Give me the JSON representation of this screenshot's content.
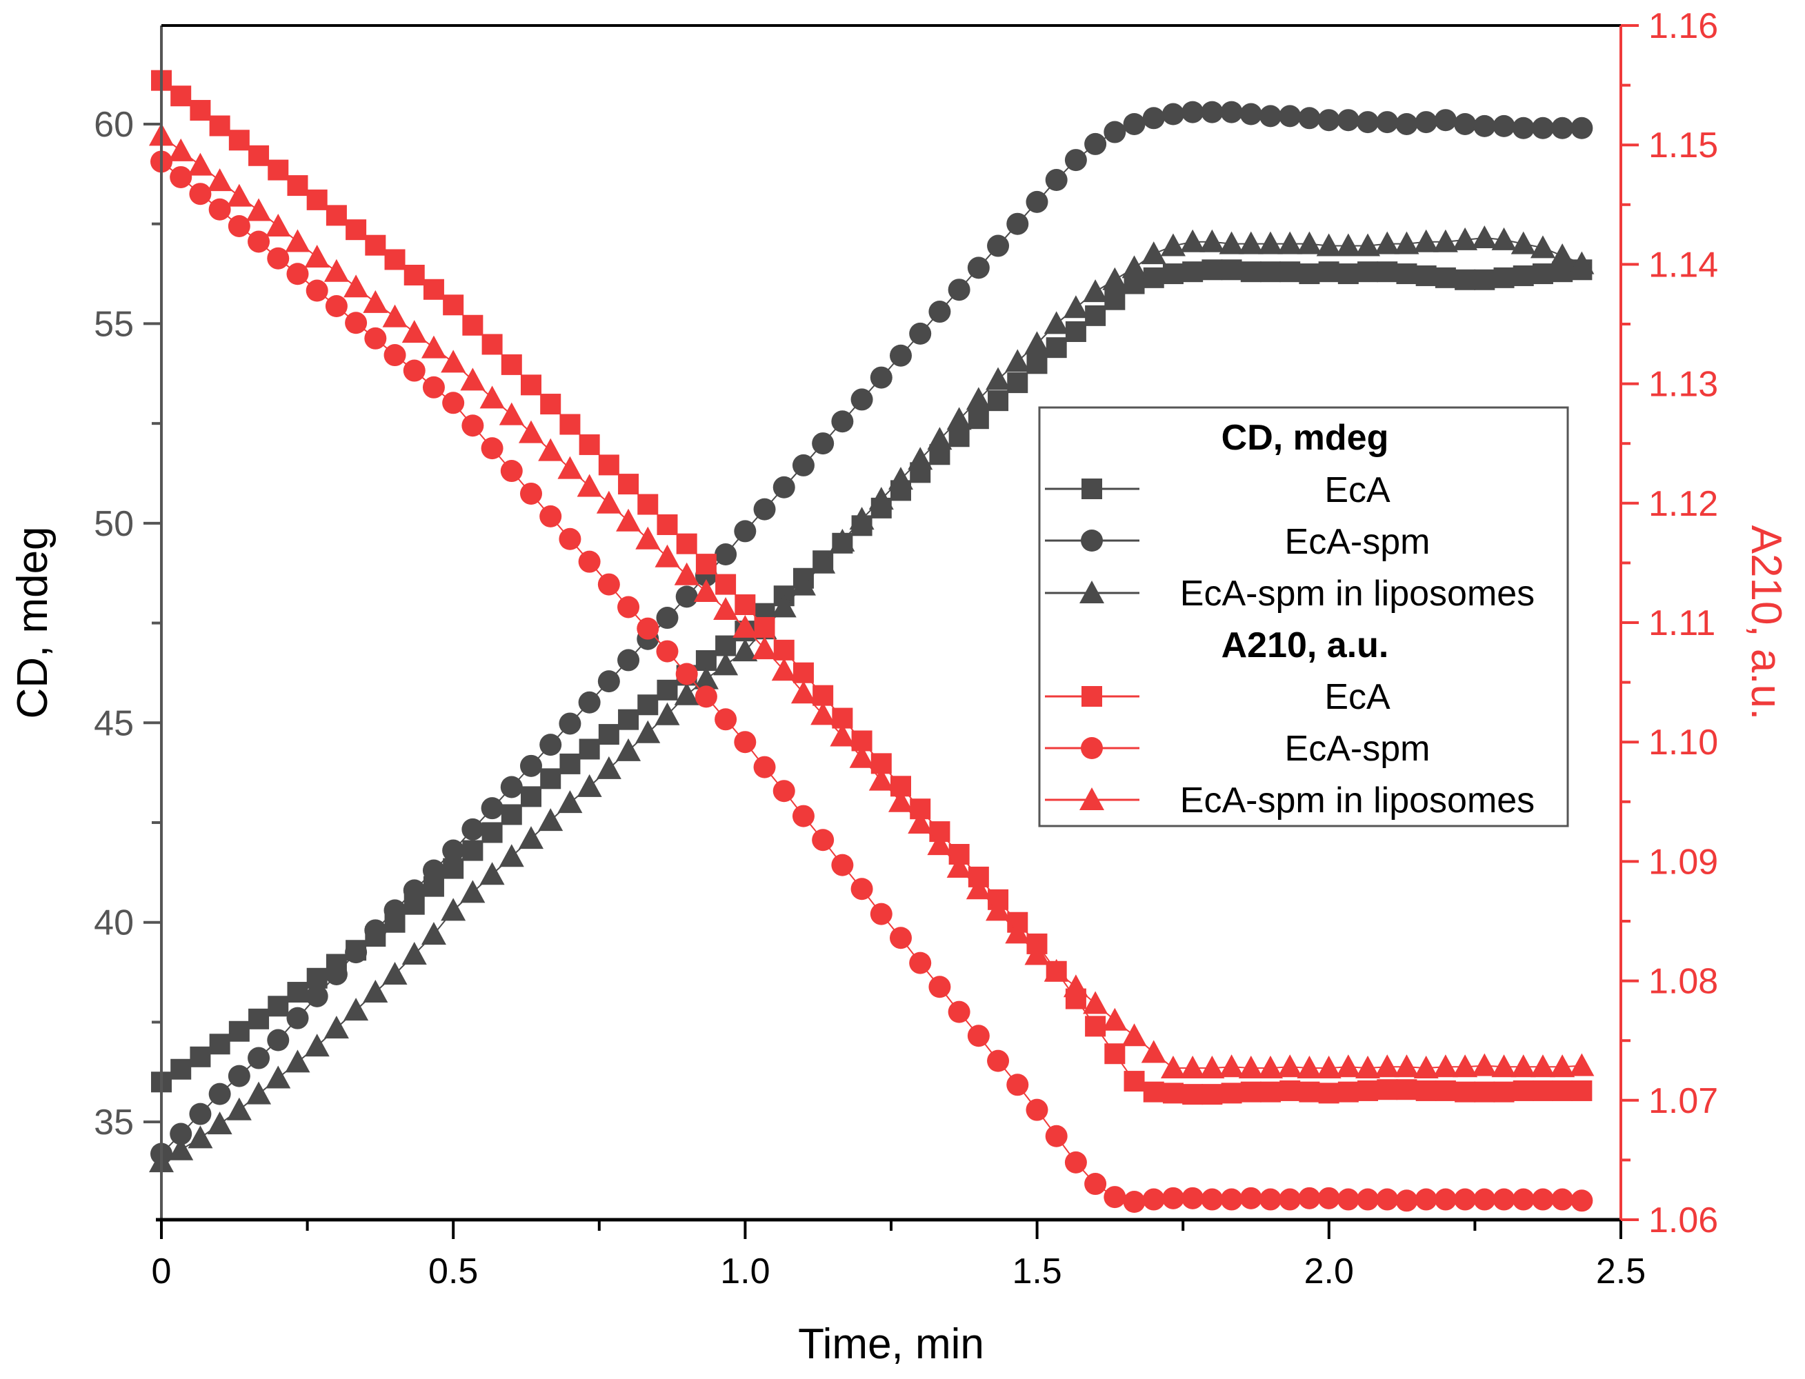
{
  "chart_data": {
    "type": "scatter",
    "xlabel": "Time, min",
    "ylabel_left": "CD, mdeg",
    "ylabel_right": "A210, a.u.",
    "xlim": [
      0,
      2.5
    ],
    "ylim_left": [
      32.55,
      62.47
    ],
    "ylim_right": [
      1.06,
      1.16
    ],
    "x_ticks": [
      "0",
      "0.5",
      "1.0",
      "1.5",
      "2.0",
      "2.5"
    ],
    "y_left_ticks": [
      "35",
      "40",
      "45",
      "50",
      "55",
      "60"
    ],
    "y_right_ticks": [
      "1.06",
      "1.07",
      "1.08",
      "1.09",
      "1.10",
      "1.11",
      "1.12",
      "1.13",
      "1.14",
      "1.15",
      "1.16"
    ],
    "grid": false,
    "legend_position": "center-right",
    "legend_groups": [
      {
        "title": "CD, mdeg",
        "entries": [
          "EcA",
          "EcA-spm",
          "EcA-spm in liposomes"
        ]
      },
      {
        "title": "A210, a.u.",
        "entries": [
          "EcA",
          "EcA-spm",
          "EcA-spm in liposomes"
        ]
      }
    ],
    "colors": {
      "cd": "#4a4a4a",
      "a210": "#f03a3a"
    },
    "x": {
      "start": 0,
      "step": 0.03333,
      "count": 74
    },
    "series": [
      {
        "name": "EcA",
        "group": "CD, mdeg",
        "axis": "left",
        "marker": "square",
        "values": [
          36.0,
          36.32,
          36.63,
          36.95,
          37.27,
          37.58,
          37.9,
          38.25,
          38.6,
          38.95,
          39.3,
          39.65,
          40.0,
          40.45,
          40.9,
          41.35,
          41.8,
          42.25,
          42.7,
          43.15,
          43.6,
          43.97,
          44.34,
          44.71,
          45.08,
          45.45,
          45.82,
          46.19,
          46.56,
          46.93,
          47.3,
          47.74,
          48.18,
          48.62,
          49.06,
          49.5,
          49.94,
          50.38,
          50.82,
          51.27,
          51.72,
          52.17,
          52.62,
          53.07,
          53.52,
          54.0,
          54.4,
          54.8,
          55.2,
          55.6,
          56.0,
          56.15,
          56.25,
          56.3,
          56.35,
          56.35,
          56.3,
          56.3,
          56.3,
          56.25,
          56.3,
          56.25,
          56.3,
          56.3,
          56.25,
          56.2,
          56.15,
          56.1,
          56.1,
          56.15,
          56.2,
          56.25,
          56.3,
          56.35
        ]
      },
      {
        "name": "EcA-spm",
        "group": "CD, mdeg",
        "axis": "left",
        "marker": "circle",
        "values": [
          34.2,
          34.7,
          35.2,
          35.7,
          36.15,
          36.6,
          37.05,
          37.6,
          38.15,
          38.7,
          39.25,
          39.8,
          40.3,
          40.8,
          41.3,
          41.8,
          42.33,
          42.86,
          43.39,
          43.92,
          44.45,
          44.98,
          45.51,
          46.04,
          46.57,
          47.1,
          47.63,
          48.16,
          48.69,
          49.22,
          49.8,
          50.35,
          50.9,
          51.45,
          52.0,
          52.55,
          53.1,
          53.65,
          54.2,
          54.75,
          55.3,
          55.85,
          56.4,
          56.95,
          57.5,
          58.05,
          58.6,
          59.1,
          59.5,
          59.8,
          60.0,
          60.15,
          60.25,
          60.3,
          60.3,
          60.3,
          60.25,
          60.2,
          60.2,
          60.15,
          60.1,
          60.1,
          60.05,
          60.05,
          60.0,
          60.05,
          60.1,
          60.0,
          59.95,
          59.95,
          59.9,
          59.9,
          59.9,
          59.9
        ]
      },
      {
        "name": "EcA-spm in liposomes",
        "group": "CD, mdeg",
        "axis": "left",
        "marker": "triangle",
        "values": [
          34.0,
          34.3,
          34.6,
          34.95,
          35.3,
          35.7,
          36.1,
          36.5,
          36.9,
          37.35,
          37.8,
          38.25,
          38.7,
          39.2,
          39.7,
          40.3,
          40.75,
          41.2,
          41.65,
          42.1,
          42.55,
          43.0,
          43.4,
          43.85,
          44.3,
          44.75,
          45.2,
          45.7,
          46.1,
          46.45,
          46.8,
          47.35,
          47.9,
          48.45,
          49.0,
          49.55,
          50.1,
          50.6,
          51.1,
          51.6,
          52.1,
          52.6,
          53.1,
          53.6,
          54.05,
          54.5,
          55.0,
          55.4,
          55.8,
          56.1,
          56.4,
          56.75,
          56.95,
          57.05,
          57.05,
          57.0,
          57.0,
          57.0,
          57.0,
          57.0,
          56.95,
          56.95,
          56.95,
          57.0,
          57.0,
          57.05,
          57.05,
          57.1,
          57.15,
          57.1,
          57.0,
          56.9,
          56.7,
          56.5
        ]
      },
      {
        "name": "EcA",
        "group": "A210, a.u.",
        "axis": "right",
        "marker": "square",
        "values": [
          1.1554,
          1.1541,
          1.1529,
          1.1516,
          1.1504,
          1.1491,
          1.1479,
          1.1466,
          1.1454,
          1.1441,
          1.1429,
          1.1416,
          1.1404,
          1.1391,
          1.1379,
          1.1366,
          1.1349,
          1.1333,
          1.1316,
          1.1299,
          1.1283,
          1.1266,
          1.1249,
          1.1232,
          1.1216,
          1.1199,
          1.1182,
          1.1166,
          1.1149,
          1.1132,
          1.1115,
          1.1096,
          1.1077,
          1.1058,
          1.1039,
          1.102,
          1.1001,
          1.0982,
          1.0963,
          1.0944,
          1.0925,
          1.0906,
          1.0887,
          1.0868,
          1.0849,
          1.0831,
          1.0808,
          1.0785,
          1.0762,
          1.0739,
          1.0716,
          1.0707,
          1.0706,
          1.0705,
          1.0705,
          1.0706,
          1.0707,
          1.0707,
          1.0708,
          1.0707,
          1.0706,
          1.0707,
          1.0708,
          1.0709,
          1.0709,
          1.0708,
          1.0708,
          1.0707,
          1.0707,
          1.0707,
          1.0708,
          1.0708,
          1.0708,
          1.0708
        ]
      },
      {
        "name": "EcA-spm",
        "group": "A210, a.u.",
        "axis": "right",
        "marker": "circle",
        "values": [
          1.1486,
          1.1473,
          1.1459,
          1.1446,
          1.1432,
          1.1419,
          1.1405,
          1.1392,
          1.1378,
          1.1365,
          1.1351,
          1.1338,
          1.1324,
          1.1311,
          1.1297,
          1.1284,
          1.1265,
          1.1246,
          1.1227,
          1.1208,
          1.1189,
          1.117,
          1.1151,
          1.1132,
          1.1113,
          1.1095,
          1.1076,
          1.1057,
          1.1038,
          1.1019,
          1.1,
          1.0979,
          1.0959,
          1.0938,
          1.0918,
          1.0897,
          1.0877,
          1.0856,
          1.0836,
          1.0815,
          1.0795,
          1.0774,
          1.0754,
          1.0733,
          1.0713,
          1.0692,
          1.067,
          1.0648,
          1.063,
          1.0619,
          1.0615,
          1.0617,
          1.0618,
          1.0618,
          1.0617,
          1.0617,
          1.0618,
          1.0617,
          1.0617,
          1.0618,
          1.0618,
          1.0617,
          1.0617,
          1.0617,
          1.0616,
          1.0617,
          1.0617,
          1.0617,
          1.0617,
          1.0617,
          1.0617,
          1.0617,
          1.0617,
          1.0616
        ]
      },
      {
        "name": "EcA-spm in liposomes",
        "group": "A210, a.u.",
        "axis": "right",
        "marker": "triangle",
        "values": [
          1.1508,
          1.1495,
          1.1483,
          1.147,
          1.1457,
          1.1445,
          1.1432,
          1.1419,
          1.1406,
          1.1394,
          1.1381,
          1.1368,
          1.1356,
          1.1343,
          1.133,
          1.1318,
          1.1303,
          1.1288,
          1.1274,
          1.1259,
          1.1244,
          1.1229,
          1.1214,
          1.12,
          1.1185,
          1.117,
          1.1155,
          1.114,
          1.1126,
          1.1111,
          1.1096,
          1.1078,
          1.106,
          1.1041,
          1.1023,
          1.1005,
          1.0987,
          1.0968,
          1.095,
          1.0932,
          1.0914,
          1.0895,
          1.0877,
          1.0859,
          1.084,
          1.0822,
          1.0808,
          1.0795,
          1.0781,
          1.0767,
          1.0754,
          1.074,
          1.0727,
          1.0727,
          1.0727,
          1.0728,
          1.0727,
          1.0727,
          1.0728,
          1.0727,
          1.0727,
          1.0728,
          1.0727,
          1.0728,
          1.0728,
          1.0727,
          1.0728,
          1.0728,
          1.0729,
          1.0728,
          1.0728,
          1.0728,
          1.0728,
          1.0729
        ]
      }
    ]
  }
}
